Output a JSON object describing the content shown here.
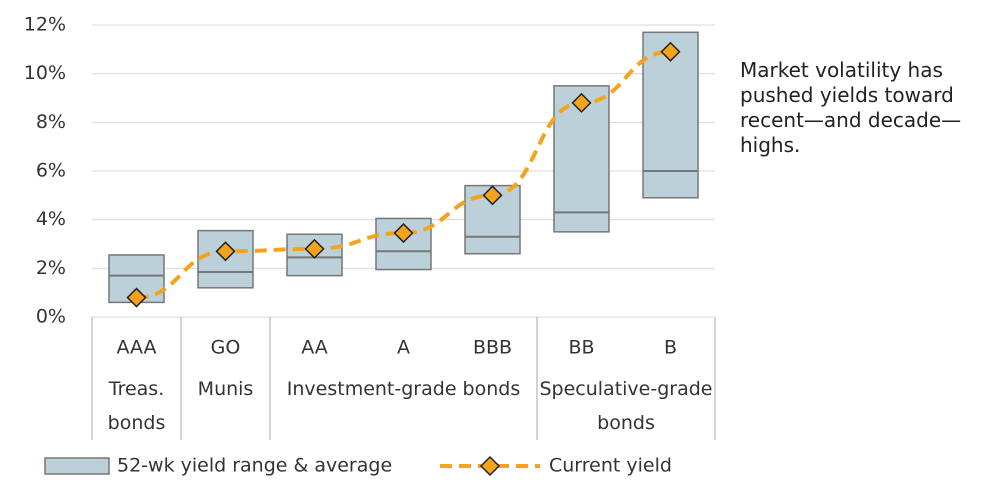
{
  "chart_data": {
    "type": "floating_bar",
    "categories": [
      "AAA",
      "GO",
      "AA",
      "A",
      "BBB",
      "BB",
      "B"
    ],
    "groups": [
      {
        "name": "Treas. bonds",
        "categories": [
          "AAA"
        ]
      },
      {
        "name": "Munis",
        "categories": [
          "GO"
        ]
      },
      {
        "name": "Investment-grade bonds",
        "categories": [
          "AA",
          "A",
          "BBB"
        ]
      },
      {
        "name": "Speculative-grade bonds",
        "categories": [
          "BB",
          "B"
        ]
      }
    ],
    "series": [
      {
        "name": "52-wk yield range & average",
        "color": "#bcd0d9",
        "low": [
          0.6,
          1.2,
          1.7,
          1.95,
          2.6,
          3.5,
          4.9
        ],
        "high": [
          2.55,
          3.55,
          3.4,
          4.05,
          5.4,
          9.5,
          11.7
        ],
        "average": [
          1.7,
          1.85,
          2.45,
          2.7,
          3.3,
          4.3,
          6.0
        ]
      },
      {
        "name": "Current yield",
        "color": "#f5a31a",
        "values": [
          0.8,
          2.7,
          2.8,
          3.45,
          5.0,
          8.8,
          10.9
        ]
      }
    ],
    "ylim": [
      0,
      12
    ],
    "yticks": [
      {
        "value": 0,
        "label": "0%"
      },
      {
        "value": 2,
        "label": "2%"
      },
      {
        "value": 4,
        "label": "4%"
      },
      {
        "value": 6,
        "label": "6%"
      },
      {
        "value": 8,
        "label": "8%"
      },
      {
        "value": 10,
        "label": "10%"
      },
      {
        "value": 12,
        "label": "12%"
      }
    ],
    "grid": true,
    "annotation": "Market volatility has pushed yields toward recent—and decade—highs."
  }
}
